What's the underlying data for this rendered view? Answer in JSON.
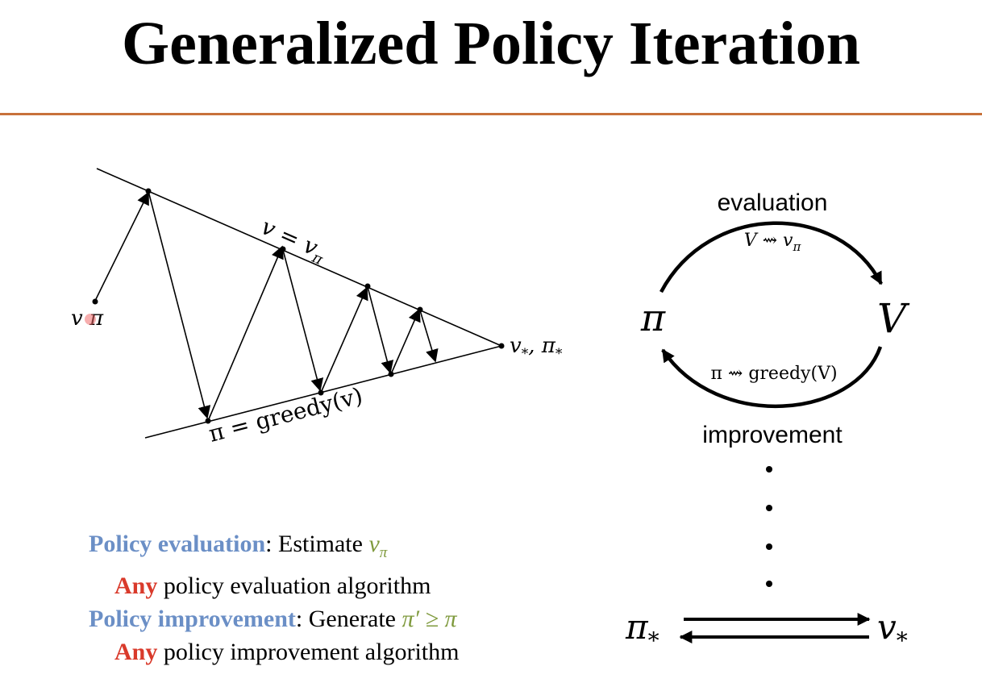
{
  "title": "Generalized Policy Iteration",
  "left_diagram": {
    "upper_line_label": "v = v",
    "upper_line_label_sub": "π",
    "lower_line_label": "π = greedy(v)",
    "start_label": "v π",
    "end_label": "v",
    "end_label_sub1": "*",
    "end_label_mid": ", π",
    "end_label_sub2": "*"
  },
  "cycle_diagram": {
    "top_label": "evaluation",
    "top_formula": "V ⇝ v",
    "top_formula_sub": "π",
    "left_node": "π",
    "right_node": "V",
    "bottom_formula": "π ⇝ greedy(V)",
    "bottom_label": "improvement"
  },
  "convergence": {
    "left": "π",
    "left_sub": "*",
    "right": "v",
    "right_sub": "*"
  },
  "bullets": {
    "eval_head": "Policy evaluation",
    "eval_text": ": Estimate ",
    "eval_math": "v",
    "eval_math_sub": "π",
    "eval_any": "Any",
    "eval_rest": " policy evaluation algorithm",
    "imp_head": "Policy improvement",
    "imp_text": ": Generate ",
    "imp_math": "π′ ≥ π",
    "imp_any": "Any",
    "imp_rest": " policy improvement algorithm"
  },
  "colors": {
    "rule": "#c8713a",
    "heading_blue": "#6b8fc6",
    "any_red": "#d93a2b",
    "math_green": "#7f9a3d"
  }
}
